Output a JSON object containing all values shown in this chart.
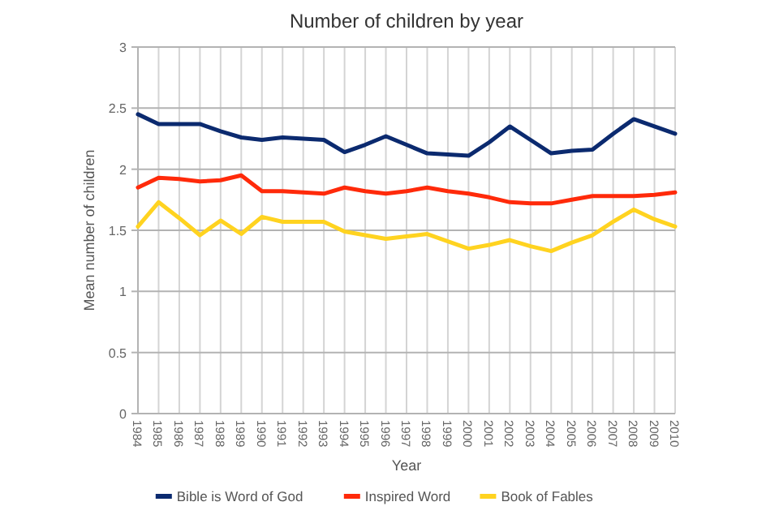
{
  "chart_data": {
    "type": "line",
    "title": "Number of children by year",
    "xlabel": "Year",
    "ylabel": "Mean number of children",
    "categories": [
      "1984",
      "1985",
      "1986",
      "1987",
      "1988",
      "1989",
      "1990",
      "1991",
      "1992",
      "1993",
      "1994",
      "1995",
      "1996",
      "1997",
      "1998",
      "1999",
      "2000",
      "2001",
      "2002",
      "2003",
      "2004",
      "2005",
      "2006",
      "2007",
      "2008",
      "2009",
      "2010"
    ],
    "series": [
      {
        "name": "Bible is Word of God",
        "color": "#0b2a6f",
        "values": [
          2.45,
          2.37,
          2.37,
          2.37,
          2.31,
          2.26,
          2.24,
          2.26,
          2.25,
          2.24,
          2.14,
          2.2,
          2.27,
          2.2,
          2.13,
          2.12,
          2.11,
          2.22,
          2.35,
          2.24,
          2.13,
          2.15,
          2.16,
          2.29,
          2.41,
          2.35,
          2.29
        ]
      },
      {
        "name": "Inspired Word",
        "color": "#ff2a0a",
        "values": [
          1.85,
          1.93,
          1.92,
          1.9,
          1.91,
          1.95,
          1.82,
          1.82,
          1.81,
          1.8,
          1.85,
          1.82,
          1.8,
          1.82,
          1.85,
          1.82,
          1.8,
          1.77,
          1.73,
          1.72,
          1.72,
          1.75,
          1.78,
          1.78,
          1.78,
          1.79,
          1.81
        ]
      },
      {
        "name": "Book of Fables",
        "color": "#ffd320",
        "values": [
          1.53,
          1.73,
          1.6,
          1.46,
          1.58,
          1.47,
          1.61,
          1.57,
          1.57,
          1.57,
          1.49,
          1.46,
          1.43,
          1.45,
          1.47,
          1.41,
          1.35,
          1.38,
          1.42,
          1.37,
          1.33,
          1.4,
          1.46,
          1.57,
          1.67,
          1.59,
          1.53
        ]
      }
    ],
    "ylim": [
      0,
      3
    ],
    "yticks": [
      0,
      0.5,
      1,
      1.5,
      2,
      2.5,
      3
    ],
    "grid": true,
    "legend": "bottom",
    "marker": "none",
    "line_style": "solid"
  }
}
